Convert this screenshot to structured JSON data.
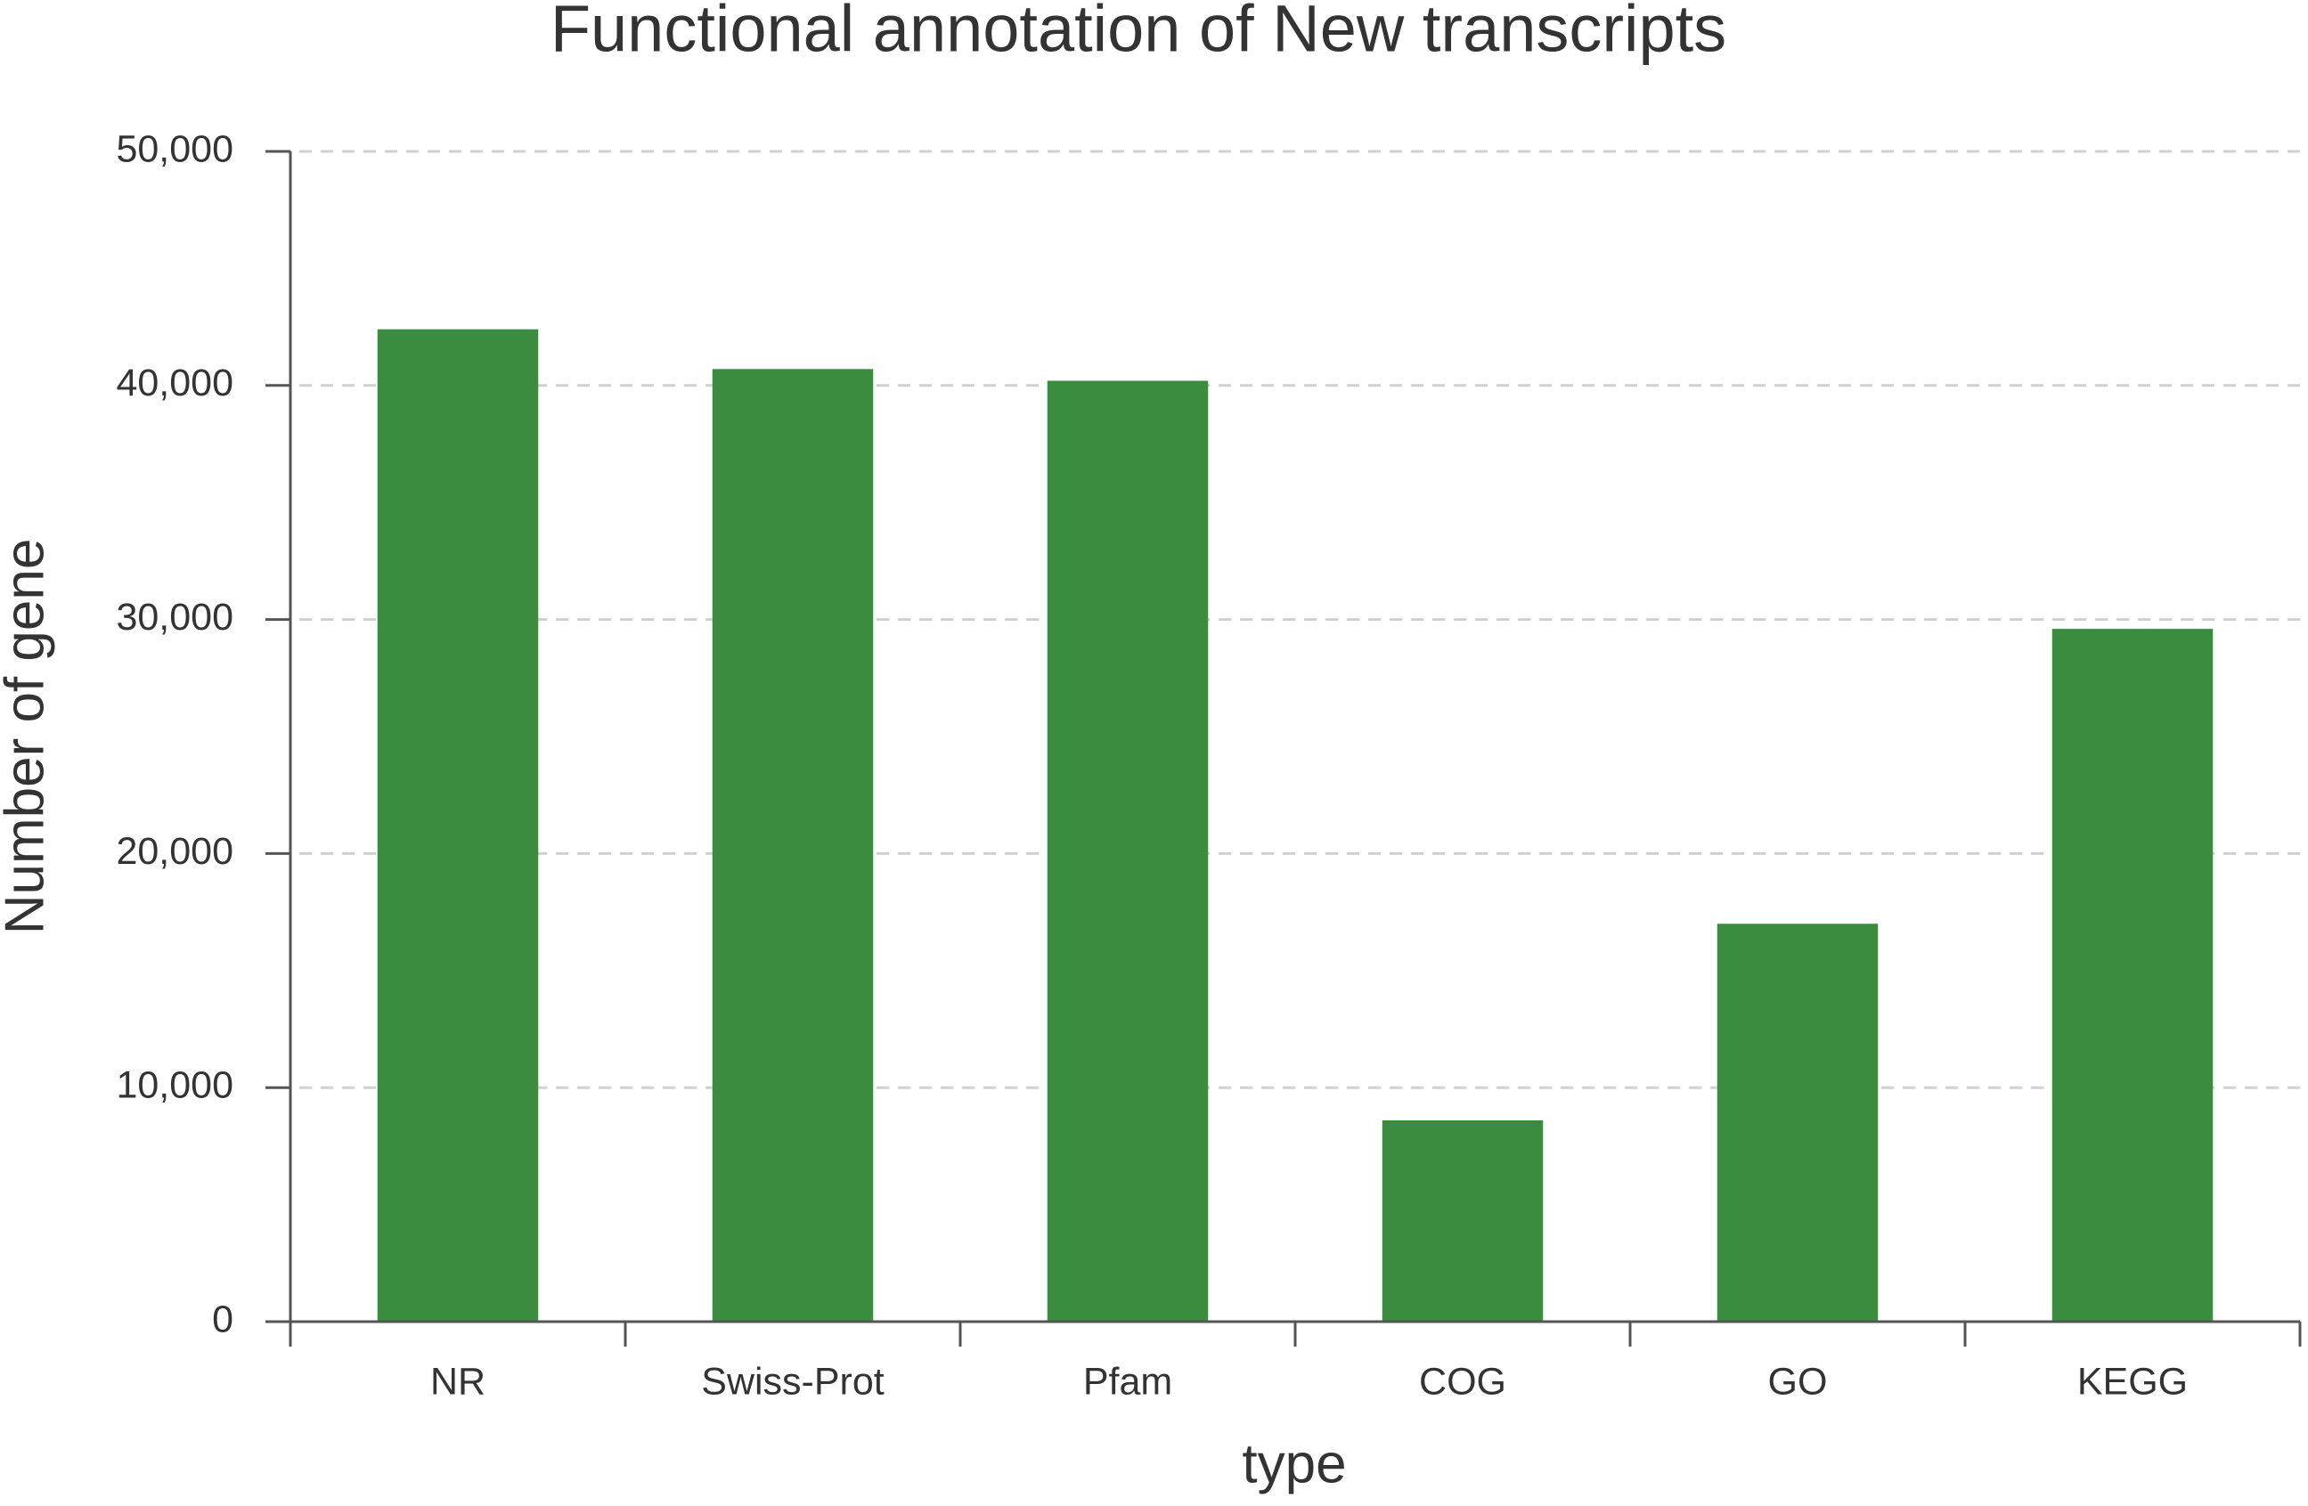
{
  "chart_data": {
    "type": "bar",
    "title": "Functional annotation of New transcripts",
    "x_label": "type",
    "y_label": "Number of gene",
    "categories": [
      "NR",
      "Swiss-Prot",
      "Pfam",
      "COG",
      "GO",
      "KEGG"
    ],
    "values": [
      42400,
      40700,
      40200,
      8600,
      17000,
      29600
    ],
    "color": "#3a8c3f",
    "ylim": [
      0,
      50000
    ],
    "yticks": [
      0,
      {
        "value": 10000,
        "label": "10,000"
      },
      {
        "value": 20000,
        "label": "20,000"
      },
      {
        "value": 30000,
        "label": "30,000"
      },
      {
        "value": 40000,
        "label": "40,000"
      },
      {
        "value": 50000,
        "label": "50,000"
      }
    ],
    "grid": true
  }
}
